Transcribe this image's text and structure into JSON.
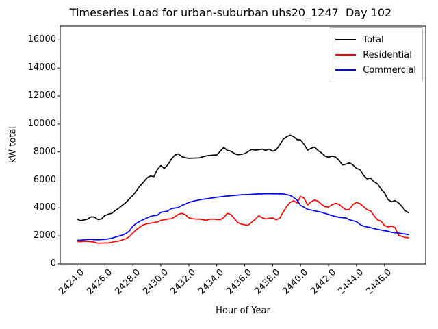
{
  "chart_data": {
    "type": "line",
    "title": "Timeseries Load for urban-suburban uhs20_1247  Day 102",
    "xlabel": "Hour of Year",
    "ylabel": "kW total",
    "xlim": [
      2422.8,
      2448.95
    ],
    "ylim": [
      0,
      17000
    ],
    "grid": false,
    "legend_position": "upper right",
    "xtick_values": [
      2424,
      2426,
      2428,
      2430,
      2432,
      2434,
      2436,
      2438,
      2440,
      2442,
      2444,
      2446
    ],
    "xtick_labels": [
      "2424.0",
      "2426.0",
      "2428.0",
      "2430.0",
      "2432.0",
      "2434.0",
      "2436.0",
      "2438.0",
      "2440.0",
      "2442.0",
      "2444.0",
      "2446.0"
    ],
    "ytick_values": [
      0,
      2000,
      4000,
      6000,
      8000,
      10000,
      12000,
      14000,
      16000
    ],
    "ytick_labels": [
      "0",
      "2000",
      "4000",
      "6000",
      "8000",
      "10000",
      "12000",
      "14000",
      "16000"
    ],
    "x": [
      2424.0,
      2424.25,
      2424.5,
      2424.75,
      2425.0,
      2425.25,
      2425.5,
      2425.75,
      2426.0,
      2426.25,
      2426.5,
      2426.75,
      2427.0,
      2427.25,
      2427.5,
      2427.75,
      2428.0,
      2428.25,
      2428.5,
      2428.75,
      2429.0,
      2429.25,
      2429.5,
      2429.75,
      2430.0,
      2430.25,
      2430.5,
      2430.75,
      2431.0,
      2431.25,
      2431.5,
      2431.75,
      2432.0,
      2432.25,
      2432.5,
      2432.75,
      2433.0,
      2433.25,
      2433.5,
      2433.75,
      2434.0,
      2434.25,
      2434.5,
      2434.75,
      2435.0,
      2435.25,
      2435.5,
      2435.75,
      2436.0,
      2436.25,
      2436.5,
      2436.75,
      2437.0,
      2437.25,
      2437.5,
      2437.75,
      2438.0,
      2438.25,
      2438.5,
      2438.75,
      2439.0,
      2439.25,
      2439.5,
      2439.75,
      2440.0,
      2440.25,
      2440.5,
      2440.75,
      2441.0,
      2441.25,
      2441.5,
      2441.75,
      2442.0,
      2442.25,
      2442.5,
      2442.75,
      2443.0,
      2443.25,
      2443.5,
      2443.75,
      2444.0,
      2444.25,
      2444.5,
      2444.75,
      2445.0,
      2445.25,
      2445.5,
      2445.75,
      2446.0,
      2446.25,
      2446.5,
      2446.75,
      2447.0,
      2447.25,
      2447.5,
      2447.75
    ],
    "series": [
      {
        "name": "Total",
        "color": "#000000",
        "values": [
          3200,
          3090,
          3140,
          3200,
          3360,
          3340,
          3170,
          3210,
          3460,
          3550,
          3620,
          3830,
          3990,
          4200,
          4390,
          4650,
          4900,
          5220,
          5560,
          5840,
          6140,
          6280,
          6240,
          6740,
          7030,
          6820,
          7080,
          7480,
          7770,
          7870,
          7660,
          7590,
          7550,
          7560,
          7570,
          7580,
          7650,
          7720,
          7750,
          7770,
          7790,
          8050,
          8330,
          8110,
          8060,
          7900,
          7800,
          7830,
          7880,
          8030,
          8180,
          8130,
          8160,
          8200,
          8120,
          8200,
          8050,
          8150,
          8500,
          8900,
          9080,
          9190,
          9090,
          8880,
          8860,
          8550,
          8130,
          8260,
          8350,
          8100,
          7930,
          7700,
          7630,
          7700,
          7640,
          7400,
          7070,
          7130,
          7220,
          7060,
          6820,
          6740,
          6330,
          6080,
          6140,
          5880,
          5720,
          5350,
          5080,
          4600,
          4440,
          4520,
          4360,
          4100,
          3790,
          3640
        ]
      },
      {
        "name": "Residential",
        "color": "#ff0000",
        "values": [
          1610,
          1580,
          1620,
          1600,
          1590,
          1555,
          1480,
          1490,
          1500,
          1500,
          1555,
          1600,
          1630,
          1720,
          1800,
          1950,
          2210,
          2450,
          2630,
          2790,
          2870,
          2905,
          2950,
          2990,
          3110,
          3150,
          3200,
          3230,
          3360,
          3540,
          3610,
          3520,
          3290,
          3230,
          3200,
          3200,
          3160,
          3120,
          3190,
          3200,
          3170,
          3160,
          3300,
          3610,
          3540,
          3250,
          2960,
          2850,
          2790,
          2770,
          2980,
          3180,
          3440,
          3300,
          3210,
          3260,
          3280,
          3150,
          3260,
          3700,
          4100,
          4390,
          4510,
          4350,
          4830,
          4700,
          4210,
          4440,
          4570,
          4480,
          4250,
          4080,
          4070,
          4230,
          4330,
          4260,
          4040,
          3860,
          3900,
          4250,
          4400,
          4300,
          4100,
          3870,
          3800,
          3450,
          3150,
          3050,
          2750,
          2650,
          2700,
          2600,
          2050,
          1970,
          1890,
          1860
        ]
      },
      {
        "name": "Commercial",
        "color": "#0000ff",
        "values": [
          1690,
          1700,
          1720,
          1740,
          1755,
          1730,
          1725,
          1740,
          1760,
          1790,
          1840,
          1920,
          1990,
          2060,
          2170,
          2350,
          2700,
          2900,
          3040,
          3160,
          3280,
          3390,
          3450,
          3480,
          3690,
          3730,
          3780,
          3950,
          3990,
          4030,
          4180,
          4280,
          4390,
          4470,
          4520,
          4570,
          4620,
          4650,
          4690,
          4730,
          4760,
          4790,
          4820,
          4850,
          4870,
          4890,
          4920,
          4940,
          4950,
          4960,
          4975,
          4985,
          4995,
          5005,
          5010,
          5010,
          5005,
          5010,
          5005,
          5000,
          4950,
          4900,
          4750,
          4550,
          4180,
          4050,
          3900,
          3850,
          3790,
          3740,
          3690,
          3610,
          3530,
          3450,
          3380,
          3330,
          3300,
          3280,
          3150,
          3080,
          3020,
          2820,
          2700,
          2650,
          2600,
          2530,
          2470,
          2420,
          2370,
          2330,
          2260,
          2230,
          2200,
          2160,
          2130,
          2080
        ]
      }
    ]
  }
}
